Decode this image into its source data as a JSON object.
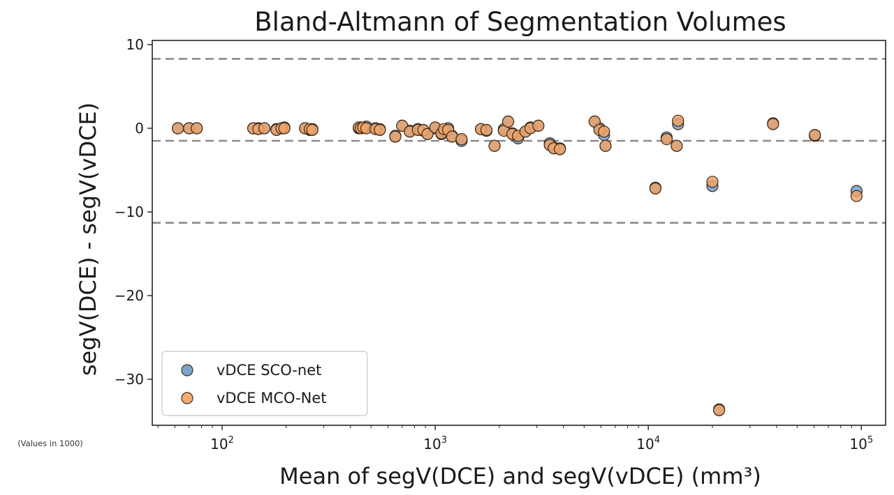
{
  "chart_data": {
    "type": "scatter",
    "title": "Bland-Altmann of Segmentation Volumes",
    "xlabel": "Mean of segV(DCE) and segV(vDCE) (mm³)",
    "ylabel": "segV(DCE) - segV(vDCE)",
    "note": "(Values in 1000)",
    "x_scale": "log",
    "xlim": [
      47,
      130000
    ],
    "ylim": [
      -35.5,
      10.5
    ],
    "x_ticks": [
      {
        "value": 100,
        "base": "10",
        "exp": "2"
      },
      {
        "value": 1000,
        "base": "10",
        "exp": "3"
      },
      {
        "value": 10000,
        "base": "10",
        "exp": "4"
      },
      {
        "value": 100000,
        "base": "10",
        "exp": "5"
      }
    ],
    "y_ticks": [
      {
        "value": 10,
        "label": "10"
      },
      {
        "value": 0,
        "label": "0"
      },
      {
        "value": -10,
        "label": "−10"
      },
      {
        "value": -20,
        "label": "−20"
      },
      {
        "value": -30,
        "label": "−30"
      }
    ],
    "reference_lines": [
      8.3,
      -1.5,
      -11.3
    ],
    "legend_position": "lower left",
    "grid": false,
    "colors": {
      "sco": "#6f9bc9",
      "mco": "#f0a366",
      "marker_edge": "#3a2a1a",
      "ref_line": "#8a8a8a",
      "axis": "#222222"
    },
    "series": [
      {
        "name": "vDCE SCO-net",
        "color": "#6f9bc9",
        "points": [
          [
            62,
            0.0
          ],
          [
            70,
            0.0
          ],
          [
            76,
            0.0
          ],
          [
            140,
            0.0
          ],
          [
            148,
            0.0
          ],
          [
            158,
            0.0
          ],
          [
            180,
            -0.1
          ],
          [
            190,
            0.0
          ],
          [
            196,
            0.1
          ],
          [
            245,
            0.0
          ],
          [
            258,
            -0.2
          ],
          [
            265,
            -0.1
          ],
          [
            438,
            0.0
          ],
          [
            448,
            0.1
          ],
          [
            460,
            0.1
          ],
          [
            475,
            0.2
          ],
          [
            525,
            0.0
          ],
          [
            550,
            -0.1
          ],
          [
            650,
            -0.9
          ],
          [
            700,
            0.3
          ],
          [
            760,
            -0.3
          ],
          [
            830,
            -0.1
          ],
          [
            880,
            -0.3
          ],
          [
            920,
            -0.6
          ],
          [
            1000,
            0.0
          ],
          [
            1070,
            -0.7
          ],
          [
            1100,
            -0.4
          ],
          [
            1150,
            0.0
          ],
          [
            1200,
            -0.9
          ],
          [
            1330,
            -1.5
          ],
          [
            1640,
            -0.1
          ],
          [
            1740,
            -0.3
          ],
          [
            1900,
            -2.1
          ],
          [
            2100,
            -0.1
          ],
          [
            2200,
            0.8
          ],
          [
            2300,
            -0.6
          ],
          [
            2450,
            -1.2
          ],
          [
            2650,
            -0.4
          ],
          [
            2800,
            0.1
          ],
          [
            3050,
            0.3
          ],
          [
            3450,
            -1.8
          ],
          [
            3600,
            -2.3
          ],
          [
            3850,
            -2.4
          ],
          [
            5600,
            0.8
          ],
          [
            5900,
            0.0
          ],
          [
            6200,
            -0.8
          ],
          [
            6300,
            -2.1
          ],
          [
            10800,
            -7.1
          ],
          [
            12200,
            -1.1
          ],
          [
            13600,
            -2.1
          ],
          [
            13800,
            0.5
          ],
          [
            20000,
            -6.9
          ],
          [
            21500,
            -33.6
          ],
          [
            38500,
            0.6
          ],
          [
            60500,
            -0.9
          ],
          [
            95000,
            -7.5
          ]
        ]
      },
      {
        "name": "vDCE MCO-Net",
        "color": "#f0a366",
        "points": [
          [
            62,
            0.0
          ],
          [
            70,
            0.0
          ],
          [
            76,
            0.0
          ],
          [
            140,
            0.0
          ],
          [
            148,
            -0.1
          ],
          [
            158,
            0.0
          ],
          [
            180,
            -0.2
          ],
          [
            190,
            0.0
          ],
          [
            196,
            0.0
          ],
          [
            245,
            0.0
          ],
          [
            258,
            -0.1
          ],
          [
            265,
            -0.2
          ],
          [
            438,
            0.1
          ],
          [
            448,
            0.0
          ],
          [
            460,
            0.1
          ],
          [
            475,
            0.0
          ],
          [
            525,
            -0.1
          ],
          [
            550,
            -0.2
          ],
          [
            650,
            -1.0
          ],
          [
            700,
            0.3
          ],
          [
            760,
            -0.4
          ],
          [
            830,
            -0.2
          ],
          [
            880,
            -0.2
          ],
          [
            920,
            -0.7
          ],
          [
            1000,
            0.1
          ],
          [
            1070,
            -0.6
          ],
          [
            1100,
            -0.1
          ],
          [
            1150,
            -0.2
          ],
          [
            1200,
            -1.0
          ],
          [
            1330,
            -1.3
          ],
          [
            1640,
            -0.1
          ],
          [
            1740,
            -0.2
          ],
          [
            1900,
            -2.1
          ],
          [
            2100,
            -0.3
          ],
          [
            2200,
            0.8
          ],
          [
            2300,
            -0.7
          ],
          [
            2450,
            -0.9
          ],
          [
            2650,
            -0.4
          ],
          [
            2800,
            0.0
          ],
          [
            3050,
            0.3
          ],
          [
            3450,
            -2.0
          ],
          [
            3600,
            -2.4
          ],
          [
            3850,
            -2.5
          ],
          [
            5600,
            0.8
          ],
          [
            5900,
            -0.2
          ],
          [
            6200,
            -0.4
          ],
          [
            6300,
            -2.1
          ],
          [
            10800,
            -7.2
          ],
          [
            12200,
            -1.3
          ],
          [
            13600,
            -2.1
          ],
          [
            13800,
            0.9
          ],
          [
            20000,
            -6.4
          ],
          [
            21500,
            -33.7
          ],
          [
            38500,
            0.5
          ],
          [
            60500,
            -0.8
          ],
          [
            95000,
            -8.1
          ]
        ]
      }
    ]
  }
}
